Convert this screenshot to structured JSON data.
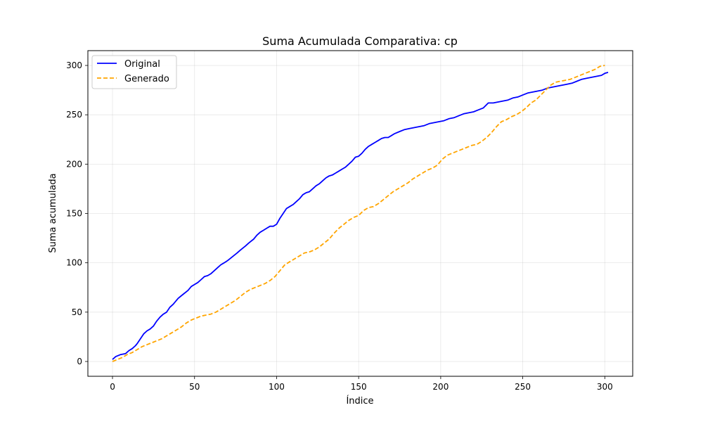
{
  "chart_data": {
    "type": "line",
    "title": "Suma Acumulada Comparativa: cp",
    "xlabel": "Índice",
    "ylabel": "Suma acumulada",
    "xlim": [
      -15,
      317
    ],
    "ylim": [
      -15,
      315
    ],
    "x_ticks": [
      0,
      50,
      100,
      150,
      200,
      250,
      300
    ],
    "y_ticks": [
      0,
      50,
      100,
      150,
      200,
      250,
      300
    ],
    "grid": true,
    "legend_position": "top-left",
    "series": [
      {
        "name": "Original",
        "color": "#0000ff",
        "dash": "solid",
        "x": [
          0,
          2,
          5,
          8,
          10,
          12,
          14,
          15,
          17,
          19,
          21,
          23,
          25,
          27,
          29,
          31,
          33,
          35,
          37,
          40,
          43,
          46,
          48,
          50,
          52,
          54,
          56,
          58,
          60,
          62,
          64,
          66,
          68,
          70,
          73,
          76,
          78,
          81,
          83,
          86,
          88,
          90,
          92,
          94,
          96,
          98,
          100,
          102,
          104,
          106,
          108,
          110,
          112,
          114,
          116,
          118,
          120,
          122,
          124,
          126,
          128,
          130,
          132,
          134,
          136,
          138,
          140,
          142,
          144,
          146,
          148,
          150,
          152,
          154,
          156,
          158,
          160,
          162,
          164,
          166,
          168,
          170,
          172,
          175,
          178,
          181,
          184,
          187,
          190,
          193,
          196,
          199,
          202,
          205,
          208,
          211,
          214,
          217,
          220,
          223,
          226,
          229,
          232,
          235,
          238,
          241,
          244,
          247,
          250,
          253,
          256,
          259,
          262,
          265,
          268,
          271,
          274,
          277,
          280,
          283,
          286,
          289,
          292,
          295,
          298,
          300,
          302
        ],
        "values": [
          2,
          5,
          7,
          8,
          11,
          13,
          16,
          18,
          23,
          28,
          31,
          33,
          36,
          41,
          45,
          48,
          50,
          55,
          58,
          64,
          68,
          72,
          76,
          78,
          80,
          83,
          86,
          87,
          89,
          92,
          95,
          98,
          100,
          102,
          106,
          110,
          113,
          117,
          120,
          124,
          128,
          131,
          133,
          135,
          137,
          137,
          139,
          145,
          150,
          155,
          157,
          159,
          162,
          165,
          169,
          171,
          172,
          175,
          178,
          180,
          183,
          186,
          188,
          189,
          191,
          193,
          195,
          197,
          200,
          203,
          207,
          208,
          211,
          215,
          218,
          220,
          222,
          224,
          226,
          227,
          227,
          229,
          231,
          233,
          235,
          236,
          237,
          238,
          239,
          241,
          242,
          243,
          244,
          246,
          247,
          249,
          251,
          252,
          253,
          255,
          257,
          262,
          262,
          263,
          264,
          265,
          267,
          268,
          270,
          272,
          273,
          274,
          275,
          277,
          278,
          279,
          280,
          281,
          282,
          284,
          286,
          287,
          288,
          289,
          290,
          292,
          293
        ]
      },
      {
        "name": "Generado",
        "color": "#ffa500",
        "dash": "dashed",
        "x": [
          0,
          3,
          6,
          9,
          12,
          15,
          18,
          21,
          24,
          27,
          30,
          33,
          36,
          39,
          42,
          45,
          48,
          51,
          54,
          57,
          60,
          63,
          66,
          69,
          72,
          75,
          78,
          81,
          84,
          87,
          90,
          93,
          96,
          99,
          102,
          105,
          108,
          111,
          114,
          117,
          120,
          123,
          126,
          129,
          132,
          135,
          138,
          141,
          144,
          147,
          150,
          153,
          156,
          159,
          162,
          165,
          168,
          171,
          174,
          177,
          180,
          183,
          186,
          189,
          192,
          195,
          198,
          201,
          204,
          207,
          210,
          213,
          216,
          219,
          222,
          225,
          228,
          231,
          234,
          237,
          240,
          243,
          246,
          249,
          252,
          255,
          258,
          261,
          264,
          267,
          270,
          273,
          276,
          279,
          282,
          285,
          288,
          291,
          294,
          297,
          300
        ],
        "values": [
          0,
          2,
          4,
          7,
          9,
          12,
          15,
          17,
          19,
          21,
          23,
          26,
          29,
          32,
          35,
          39,
          42,
          44,
          46,
          47,
          48,
          50,
          53,
          56,
          59,
          62,
          66,
          70,
          73,
          75,
          77,
          79,
          82,
          86,
          92,
          98,
          101,
          104,
          107,
          110,
          111,
          113,
          116,
          120,
          124,
          130,
          135,
          139,
          143,
          146,
          148,
          153,
          156,
          157,
          160,
          164,
          168,
          172,
          175,
          178,
          181,
          185,
          188,
          191,
          194,
          196,
          199,
          205,
          209,
          211,
          213,
          215,
          217,
          219,
          220,
          223,
          227,
          232,
          238,
          243,
          245,
          248,
          250,
          253,
          257,
          262,
          265,
          270,
          275,
          280,
          283,
          284,
          285,
          286,
          288,
          290,
          292,
          294,
          296,
          299,
          300
        ]
      }
    ]
  }
}
